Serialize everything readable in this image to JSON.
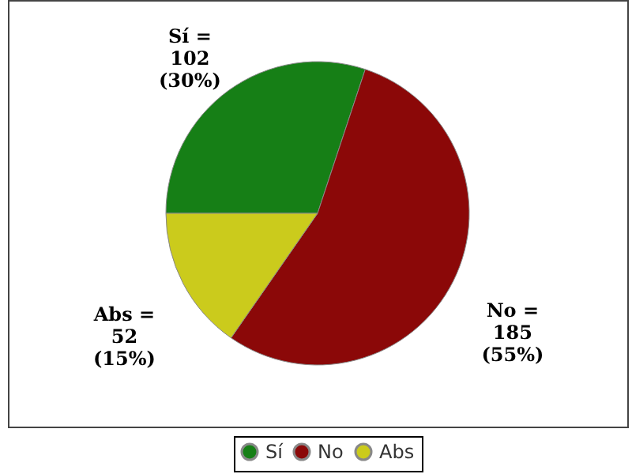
{
  "chart_data": {
    "type": "pie",
    "categories": [
      "Sí",
      "No",
      "Abs"
    ],
    "values": [
      102,
      185,
      52
    ],
    "colors": [
      "#167f16",
      "#8b0808",
      "#cbcb1c"
    ],
    "value_labels": [
      "Sí =\n102\n(30%)",
      "No =\n185\n(55%)",
      "Abs =\n52\n(15%)"
    ],
    "legend": "bottom"
  }
}
